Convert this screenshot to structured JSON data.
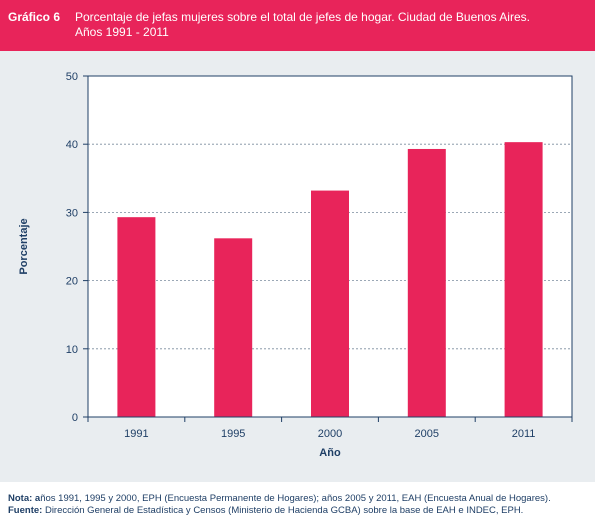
{
  "header": {
    "label": "Gráfico 6",
    "title_line1": "Porcentaje de jefas mujeres sobre el total de jefes de hogar. Ciudad de Buenos Aires.",
    "title_line2": "Años 1991 - 2011"
  },
  "chart_data": {
    "type": "bar",
    "categories": [
      "1991",
      "1995",
      "2000",
      "2005",
      "2011"
    ],
    "values": [
      29.3,
      26.2,
      33.2,
      39.3,
      40.3
    ],
    "xlabel": "Año",
    "ylabel": "Porcentaje",
    "ylim": [
      0,
      50
    ],
    "yticks": [
      "0",
      "10",
      "20",
      "30",
      "40",
      "50"
    ],
    "grid": "horizontal dashed",
    "bar_color": "#e8245a",
    "axis_color": "#1f3f66"
  },
  "notes": {
    "nota_label": "Nota: a",
    "nota_text": "ños 1991, 1995 y 2000, EPH (Encuesta Permanente de Hogares); años 2005 y 2011, EAH (Encuesta Anual de Hogares).",
    "fuente_label": "Fuente:",
    "fuente_text": " Dirección General de Estadística y Censos (Ministerio de Hacienda GCBA)  sobre la base de EAH e INDEC, EPH."
  }
}
